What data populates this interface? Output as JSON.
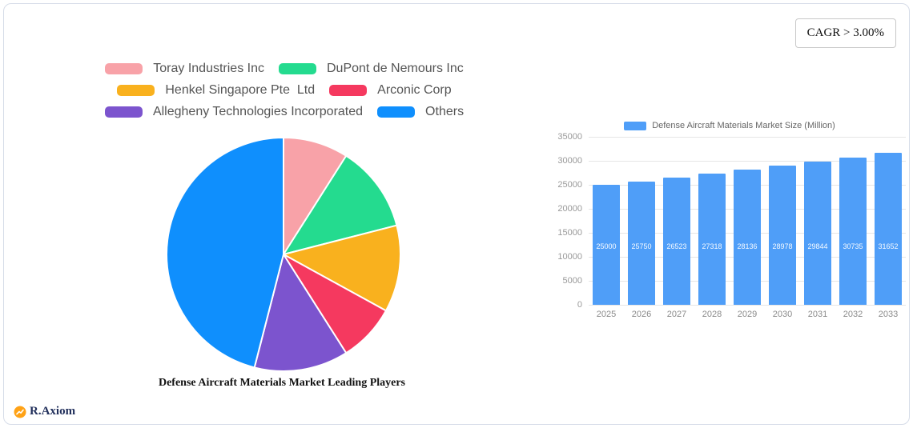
{
  "cagr_badge": "CAGR > 3.00%",
  "logo": {
    "text": "R.Axiom"
  },
  "chart_data": [
    {
      "type": "pie",
      "title": "Defense Aircraft Materials Market Leading Players",
      "legend_position": "top",
      "labels": [
        "Toray Industries Inc",
        "DuPont de Nemours Inc",
        "Henkel Singapore Pte  Ltd",
        "Arconic Corp",
        "Allegheny Technologies Incorporated",
        "Others"
      ],
      "values": [
        9,
        12,
        12,
        8,
        13,
        46
      ],
      "colors": [
        "#F8A2A8",
        "#24DB8F",
        "#F9B11E",
        "#F5395F",
        "#7C54CE",
        "#0F8FFD"
      ]
    },
    {
      "type": "bar",
      "legend": "Defense Aircraft Materials Market Size (Million)",
      "categories": [
        "2025",
        "2026",
        "2027",
        "2028",
        "2029",
        "2030",
        "2031",
        "2032",
        "2033"
      ],
      "values": [
        25000,
        25750,
        26523,
        27318,
        28136,
        28978,
        29844,
        30735,
        31652
      ],
      "bar_color": "#4F9EF8",
      "ylim": [
        0,
        35000
      ],
      "ytick_step": 5000,
      "grid": true
    }
  ]
}
